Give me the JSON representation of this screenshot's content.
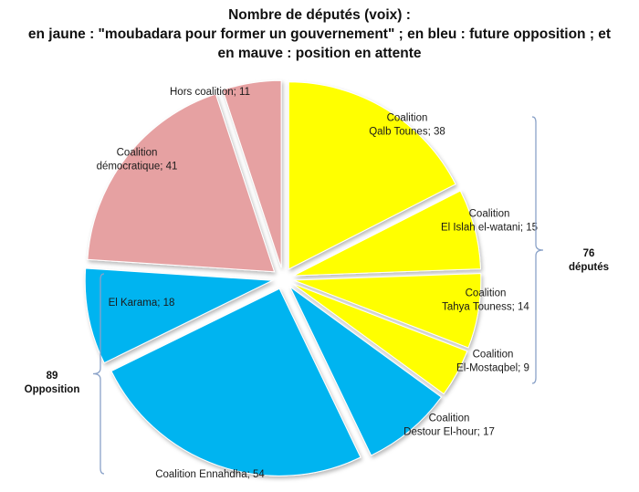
{
  "title": {
    "line1": "Nombre de députés (voix) :",
    "line2": "en jaune : \"moubadara pour former un gouvernement\" ; en bleu : future opposition ; et",
    "line3": "en mauve : position en attente"
  },
  "colors": {
    "yellow": "#ffff00",
    "blue": "#00b4f0",
    "mauve": "#e6a1a2",
    "bracket": "#8aa2c8"
  },
  "chart_data": {
    "type": "pie",
    "title": "Nombre de députés (voix) : en jaune : \"moubadara pour former un gouvernement\" ; en bleu : future opposition ; et en mauve : position en attente",
    "slices": [
      {
        "line1": "Coalition",
        "line2": "Qalb Tounes; 38",
        "value": 38,
        "group": "yellow"
      },
      {
        "line1": "Coalition",
        "line2": "El Islah el-watani; 15",
        "value": 15,
        "group": "yellow"
      },
      {
        "line1": "Coalition",
        "line2": "Tahya Touness; 14",
        "value": 14,
        "group": "yellow"
      },
      {
        "line1": "Coalition",
        "line2": "El-Mostaqbel; 9",
        "value": 9,
        "group": "yellow"
      },
      {
        "line1": "Coalition",
        "line2": "Destour El-hour; 17",
        "value": 17,
        "group": "blue"
      },
      {
        "line1": "",
        "line2": "Coalition Ennahdha; 54",
        "value": 54,
        "group": "blue"
      },
      {
        "line1": "",
        "line2": "El Karama; 18",
        "value": 18,
        "group": "blue"
      },
      {
        "line1": "Coalition",
        "line2": "démocratique; 41",
        "value": 41,
        "group": "mauve"
      },
      {
        "line1": "",
        "line2": "Hors coalition; 11",
        "value": 11,
        "group": "mauve"
      }
    ],
    "brackets": [
      {
        "side": "right",
        "line1": "76",
        "line2": "députés",
        "covers": "yellow"
      },
      {
        "side": "left",
        "line1": "89",
        "line2": "Opposition",
        "covers": "blue"
      }
    ]
  }
}
